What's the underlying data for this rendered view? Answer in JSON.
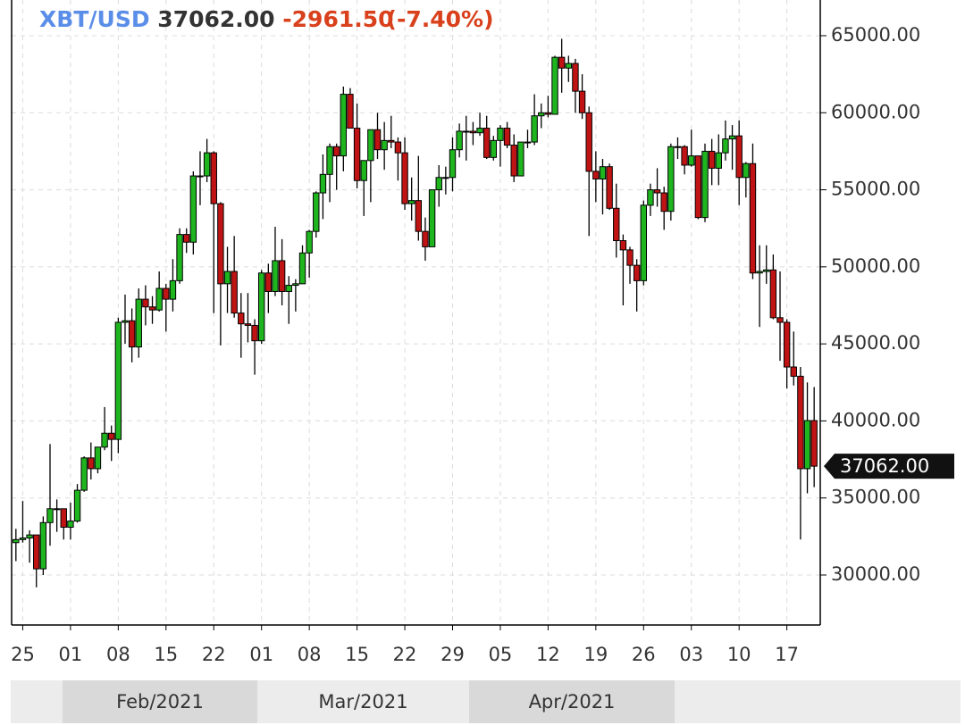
{
  "chart_data": {
    "type": "candlestick",
    "header": {
      "symbol": "XBT/USD",
      "last": "37062.00",
      "change": "-2961.50",
      "change_pct": "(-7.40%)"
    },
    "last_price": {
      "value": 37062,
      "label": "37062.00"
    },
    "up_color": "#1fb51f",
    "down_color": "#c01414",
    "ylim": [
      26755,
      67318
    ],
    "yticks": [
      {
        "value": 30000,
        "label": "30000.00"
      },
      {
        "value": 35000,
        "label": "35000.00"
      },
      {
        "value": 40000,
        "label": "40000.00"
      },
      {
        "value": 45000,
        "label": "45000.00"
      },
      {
        "value": 50000,
        "label": "50000.00"
      },
      {
        "value": 55000,
        "label": "55000.00"
      },
      {
        "value": 60000,
        "label": "60000.00"
      },
      {
        "value": 65000,
        "label": "65000.00"
      }
    ],
    "grid": true,
    "periods": [
      "Feb/2021",
      "Mar/2021",
      "Apr/2021"
    ],
    "categories": [
      null,
      "25",
      null,
      null,
      null,
      null,
      null,
      null,
      "01",
      null,
      null,
      null,
      null,
      null,
      null,
      "08",
      null,
      null,
      null,
      null,
      null,
      null,
      "15",
      null,
      null,
      null,
      null,
      null,
      null,
      "22",
      null,
      null,
      null,
      null,
      null,
      null,
      "01",
      null,
      null,
      null,
      null,
      null,
      null,
      "08",
      null,
      null,
      null,
      null,
      null,
      null,
      "15",
      null,
      null,
      null,
      null,
      null,
      null,
      "22",
      null,
      null,
      null,
      null,
      null,
      null,
      "29",
      null,
      null,
      null,
      null,
      null,
      null,
      "05",
      null,
      null,
      null,
      null,
      null,
      null,
      "12",
      null,
      null,
      null,
      null,
      null,
      null,
      "19",
      null,
      null,
      null,
      null,
      null,
      null,
      "26",
      null,
      null,
      null,
      null,
      null,
      null,
      "03",
      null,
      null,
      null,
      null,
      null,
      null,
      "10",
      null,
      null,
      null,
      null,
      null,
      null,
      "17",
      null,
      null,
      null,
      null
    ],
    "open": [
      32100,
      32300,
      32400,
      32600,
      30400,
      33400,
      34300,
      34300,
      33100,
      33500,
      35500,
      37600,
      36900,
      38300,
      39200,
      38800,
      46400,
      46500,
      44800,
      47900,
      47400,
      47200,
      48600,
      47900,
      49100,
      52100,
      51600,
      55900,
      55900,
      57400,
      54100,
      48900,
      49700,
      47000,
      46300,
      46200,
      45200,
      49600,
      48400,
      50400,
      48400,
      48800,
      48900,
      50900,
      52300,
      54800,
      56000,
      57800,
      57200,
      61200,
      59000,
      55600,
      56900,
      58900,
      57600,
      58200,
      58100,
      57400,
      54100,
      54300,
      52300,
      51300,
      55000,
      55800,
      55800,
      57600,
      58800,
      58800,
      58700,
      59000,
      57100,
      58200,
      59000,
      57900,
      55900,
      58100,
      58100,
      59800,
      60000,
      59900,
      63600,
      62900,
      63200,
      61400,
      60000,
      56200,
      55700,
      56500,
      53800,
      51700,
      51100,
      50100,
      49100,
      54000,
      55000,
      54800,
      53600,
      57800,
      57800,
      56600,
      57200,
      53200,
      57500,
      56400,
      57400,
      58300,
      58500,
      55800,
      56700,
      49600,
      49700,
      49800,
      46700,
      46400,
      43500,
      42900,
      36900,
      40023.5
    ],
    "high": [
      33000,
      34800,
      32900,
      32600,
      33800,
      38500,
      34900,
      34300,
      34700,
      35900,
      37700,
      38600,
      38300,
      40900,
      39700,
      46700,
      48200,
      47300,
      48600,
      48800,
      48100,
      49700,
      48900,
      50500,
      52500,
      52500,
      56200,
      57500,
      58300,
      57500,
      54200,
      51300,
      52000,
      48300,
      48300,
      46600,
      49800,
      50200,
      52600,
      51800,
      49400,
      49200,
      51400,
      52400,
      54900,
      57300,
      58000,
      58000,
      61700,
      61600,
      60600,
      56900,
      58900,
      60000,
      59400,
      59800,
      58400,
      58400,
      55800,
      57200,
      53200,
      55000,
      56600,
      56500,
      58400,
      59300,
      59800,
      59400,
      60000,
      59800,
      58500,
      59200,
      59400,
      58600,
      58100,
      58900,
      61200,
      60600,
      61100,
      63700,
      64800,
      63700,
      63500,
      62500,
      60400,
      57500,
      57000,
      56700,
      55400,
      52100,
      51300,
      50500,
      54300,
      55400,
      56400,
      55200,
      58000,
      58400,
      57900,
      58900,
      57200,
      58000,
      58300,
      58600,
      59500,
      59200,
      59500,
      56800,
      58000,
      51400,
      51400,
      50800,
      49700,
      46600,
      45800,
      43500,
      42500,
      42200
    ],
    "low": [
      30900,
      32100,
      30800,
      29200,
      30000,
      31900,
      32800,
      32300,
      32300,
      33400,
      35400,
      36200,
      36600,
      38100,
      37400,
      37900,
      45000,
      43800,
      44100,
      46200,
      46300,
      47100,
      45800,
      47100,
      48900,
      50900,
      50800,
      54000,
      55500,
      47000,
      44900,
      47000,
      46700,
      44100,
      45100,
      43000,
      45000,
      47000,
      48100,
      47500,
      46300,
      47100,
      48900,
      49300,
      51900,
      53100,
      54200,
      55000,
      56200,
      59000,
      55100,
      53300,
      54200,
      57000,
      56300,
      57700,
      55600,
      53700,
      53000,
      51700,
      50400,
      51300,
      53900,
      54700,
      54900,
      57100,
      56900,
      57900,
      58500,
      57000,
      56900,
      56500,
      57700,
      55500,
      55900,
      57700,
      57900,
      59000,
      59700,
      59900,
      61300,
      62000,
      60000,
      59600,
      52000,
      54200,
      53400,
      53700,
      50600,
      47500,
      48900,
      47100,
      48800,
      53300,
      53900,
      52400,
      53000,
      57000,
      56000,
      56500,
      53100,
      52900,
      55300,
      55300,
      56900,
      56300,
      54000,
      54500,
      49200,
      46100,
      48900,
      46600,
      43900,
      42100,
      42300,
      32300,
      35300,
      35700
    ],
    "close": [
      32300,
      32400,
      32600,
      30400,
      33400,
      34300,
      34300,
      33100,
      33500,
      35500,
      37600,
      36900,
      38300,
      39200,
      38800,
      46400,
      46500,
      44800,
      47900,
      47400,
      47200,
      48600,
      47900,
      49100,
      52100,
      51600,
      55900,
      55900,
      57400,
      54100,
      48900,
      49700,
      47000,
      46300,
      46200,
      45200,
      49600,
      48400,
      50400,
      48400,
      48800,
      48900,
      50900,
      52300,
      54800,
      56000,
      57800,
      57200,
      61200,
      59000,
      55600,
      56900,
      58900,
      57600,
      58200,
      58100,
      57400,
      54100,
      54300,
      52300,
      51300,
      55000,
      55800,
      55800,
      57600,
      58800,
      58800,
      58700,
      59000,
      57100,
      58200,
      59000,
      57900,
      55900,
      58100,
      58100,
      59800,
      60000,
      59900,
      63600,
      62900,
      63200,
      61400,
      60000,
      56200,
      55700,
      56500,
      53800,
      51700,
      51100,
      50100,
      49100,
      54000,
      55000,
      54800,
      53600,
      57800,
      57800,
      56600,
      57200,
      53200,
      57500,
      56400,
      57400,
      58300,
      58500,
      55800,
      56700,
      49600,
      49700,
      49800,
      46700,
      46400,
      43500,
      42900,
      36900,
      40023.5,
      37062
    ]
  }
}
